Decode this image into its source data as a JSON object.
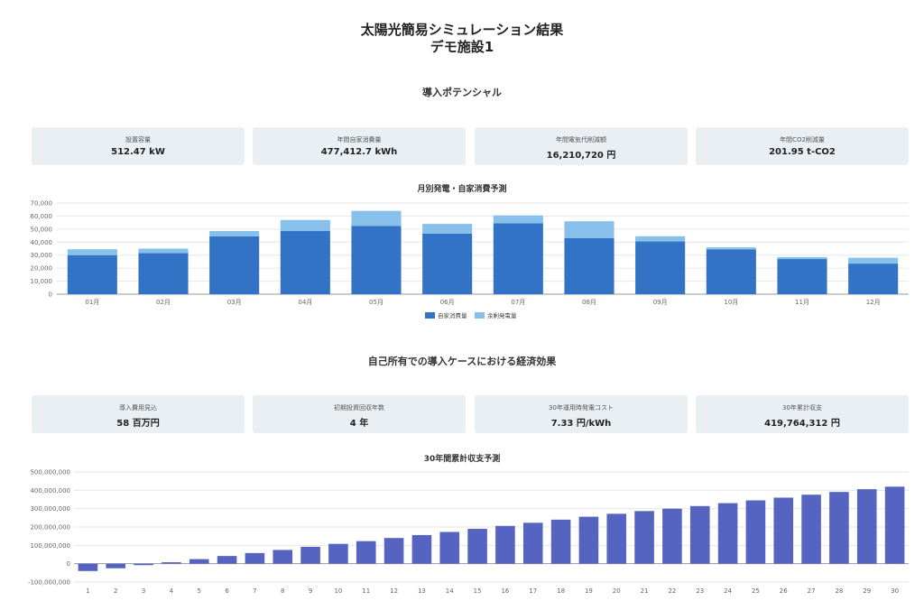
{
  "header": {
    "title": "太陽光簡易シミュレーション結果",
    "facility": "デモ施設1"
  },
  "potential": {
    "section_title": "導入ポテンシャル",
    "cards": [
      {
        "label": "設置容量",
        "value": "512.47 kW"
      },
      {
        "label": "年間自家消費量",
        "value": "477,412.7 kWh"
      },
      {
        "label": "年間電気代削減額",
        "value": "16,210,720 円"
      },
      {
        "label": "年間CO2削減量",
        "value": "201.95 t-CO2"
      }
    ]
  },
  "economics": {
    "section_title": "自己所有での導入ケースにおける経済効果",
    "cards": [
      {
        "label": "導入費用見込",
        "value": "58 百万円"
      },
      {
        "label": "初期投資回収年数",
        "value": "4 年"
      },
      {
        "label": "30年運用時発電コスト",
        "value": "7.33 円/kWh"
      },
      {
        "label": "30年累計収支",
        "value": "419,764,312 円"
      }
    ]
  },
  "colors": {
    "self": "#3273c6",
    "surplus": "#86c0eb",
    "cumulative": "#5564c0",
    "card_bg": "#eaeff3"
  },
  "chart_data": [
    {
      "type": "bar",
      "stacked": true,
      "title": "月別発電・自家消費予測",
      "categories": [
        "01月",
        "02月",
        "03月",
        "04月",
        "05月",
        "06月",
        "07月",
        "08月",
        "09月",
        "10月",
        "11月",
        "12月"
      ],
      "series": [
        {
          "name": "自家消費量",
          "values": [
            30000,
            31500,
            44500,
            48500,
            52500,
            46500,
            54500,
            43000,
            40500,
            34500,
            27000,
            23500
          ]
        },
        {
          "name": "余剰発電量",
          "values": [
            4500,
            3500,
            4000,
            8500,
            11500,
            7500,
            6000,
            13000,
            4000,
            1500,
            1500,
            4500
          ]
        }
      ],
      "ylim": [
        0,
        70000
      ],
      "yticks": [
        "70,000",
        "60,000",
        "50,000",
        "40,000",
        "30,000",
        "20,000",
        "10,000",
        "0"
      ],
      "legend": "bottom",
      "grid": true
    },
    {
      "type": "bar",
      "title": "30年間累計収支予測",
      "categories": [
        "1",
        "2",
        "3",
        "4",
        "5",
        "6",
        "7",
        "8",
        "9",
        "10",
        "11",
        "12",
        "13",
        "14",
        "15",
        "16",
        "17",
        "18",
        "19",
        "20",
        "21",
        "22",
        "23",
        "24",
        "25",
        "26",
        "27",
        "28",
        "29",
        "30"
      ],
      "series": [
        {
          "name": "累計収支",
          "values": [
            -40000000,
            -25000000,
            -8000000,
            8000000,
            25000000,
            42000000,
            58000000,
            75000000,
            92000000,
            108000000,
            123000000,
            140000000,
            156000000,
            173000000,
            190000000,
            206000000,
            223000000,
            240000000,
            256000000,
            272000000,
            287000000,
            300000000,
            314000000,
            330000000,
            345000000,
            360000000,
            376000000,
            391000000,
            406000000,
            419764312
          ]
        }
      ],
      "ylim": [
        -100000000,
        500000000
      ],
      "yticks": [
        "500,000,000",
        "400,000,000",
        "300,000,000",
        "200,000,000",
        "100,000,000",
        "0",
        "-100,000,000"
      ],
      "grid": true
    }
  ]
}
